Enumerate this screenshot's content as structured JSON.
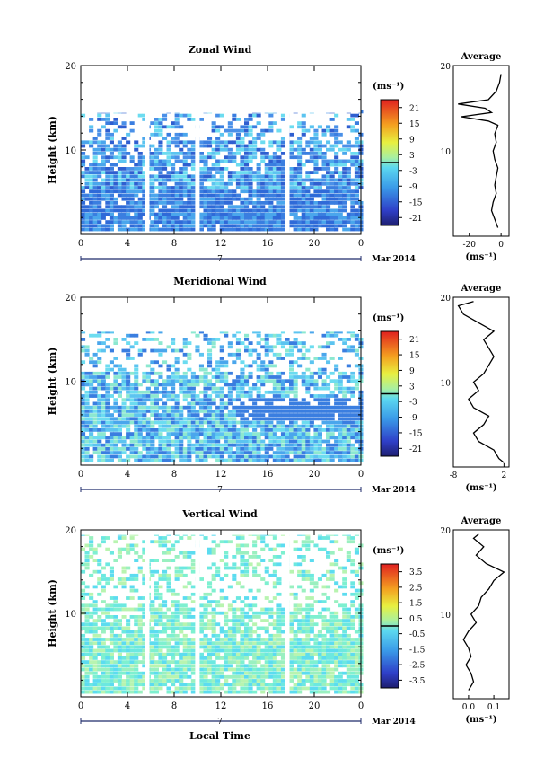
{
  "figure": {
    "x_label": "Local Time",
    "date_label": "Mar 2014",
    "day_label": "7"
  },
  "colorbar_unit": "(ms⁻¹)",
  "avg_unit": "(ms⁻¹)",
  "avg_title": "Average",
  "y_label": "Height (km)",
  "chart_data": [
    {
      "type": "heatmap",
      "title": "Zonal Wind",
      "ylabel": "Height (km)",
      "xlabel": "",
      "xlim": [
        0,
        24
      ],
      "ylim": [
        0,
        20
      ],
      "x_ticks": [
        "0",
        "4",
        "8",
        "12",
        "16",
        "20",
        "0"
      ],
      "y_ticks": [
        "20",
        "10"
      ],
      "colorbar": {
        "unit": "(ms⁻¹)",
        "range": [
          -24,
          24
        ],
        "ticks": [
          "21",
          "15",
          "9",
          "3",
          "-3",
          "-9",
          "-15",
          "-21"
        ]
      },
      "data_gaps_hours": [
        5.5,
        9.8,
        17.5
      ],
      "average_profile": {
        "title": "Average",
        "xlabel": "(ms⁻¹)",
        "xlim": [
          -30,
          5
        ],
        "x_ticks": [
          "-20",
          "0"
        ],
        "height": [
          1,
          2,
          3,
          4,
          5,
          6,
          7,
          8,
          9,
          10,
          11,
          12,
          13,
          13.5,
          14,
          14.5,
          15,
          15.5,
          16,
          17,
          18,
          19
        ],
        "value": [
          -2,
          -4,
          -6,
          -5,
          -3,
          -4,
          -3,
          -2,
          -4,
          -5,
          -3,
          -4,
          -2,
          -8,
          -25,
          -6,
          -10,
          -27,
          -8,
          -3,
          -1,
          0
        ]
      }
    },
    {
      "type": "heatmap",
      "title": "Meridional Wind",
      "ylabel": "Height (km)",
      "xlabel": "",
      "xlim": [
        0,
        24
      ],
      "ylim": [
        0,
        20
      ],
      "x_ticks": [
        "0",
        "4",
        "8",
        "12",
        "16",
        "20",
        "0"
      ],
      "y_ticks": [
        "20",
        "10"
      ],
      "colorbar": {
        "unit": "(ms⁻¹)",
        "range": [
          -24,
          24
        ],
        "ticks": [
          "21",
          "15",
          "9",
          "3",
          "-3",
          "-9",
          "-15",
          "-21"
        ]
      },
      "data_gaps_hours": [],
      "average_profile": {
        "title": "Average",
        "xlabel": "(ms⁻¹)",
        "xlim": [
          -8,
          3
        ],
        "x_ticks": [
          "-8",
          "2"
        ],
        "height": [
          0.5,
          1,
          2,
          3,
          4,
          5,
          6,
          7,
          8,
          9,
          10,
          11,
          12,
          13,
          14,
          15,
          16,
          17,
          18,
          19,
          19.5
        ],
        "value": [
          2,
          1,
          0,
          -3,
          -4,
          -2,
          -1,
          -4,
          -5,
          -3,
          -4,
          -2,
          -1,
          0,
          -1,
          -2,
          0,
          -3,
          -6,
          -7,
          -4
        ]
      }
    },
    {
      "type": "heatmap",
      "title": "Vertical Wind",
      "ylabel": "Height (km)",
      "xlabel": "Local Time",
      "xlim": [
        0,
        24
      ],
      "ylim": [
        0,
        20
      ],
      "x_ticks": [
        "0",
        "4",
        "8",
        "12",
        "16",
        "20",
        "0"
      ],
      "y_ticks": [
        "20",
        "10"
      ],
      "colorbar": {
        "unit": "(ms⁻¹)",
        "range": [
          -4,
          4
        ],
        "ticks": [
          "3.5",
          "2.5",
          "1.5",
          "0.5",
          "-0.5",
          "-1.5",
          "-2.5",
          "-3.5"
        ]
      },
      "data_gaps_hours": [
        5.5,
        9.8,
        17.5
      ],
      "average_profile": {
        "title": "Average",
        "xlabel": "(ms⁻¹)",
        "xlim": [
          -0.06,
          0.16
        ],
        "x_ticks": [
          "0.0",
          "0.1"
        ],
        "height": [
          1,
          2,
          3,
          4,
          5,
          6,
          7,
          8,
          9,
          10,
          11,
          12,
          13,
          14,
          15,
          16,
          17,
          18,
          19,
          19.5
        ],
        "value": [
          0.0,
          0.02,
          0.01,
          -0.01,
          0.01,
          0.0,
          -0.02,
          0.0,
          0.03,
          0.01,
          0.04,
          0.05,
          0.08,
          0.1,
          0.14,
          0.07,
          0.03,
          0.06,
          0.02,
          0.04
        ]
      }
    }
  ]
}
